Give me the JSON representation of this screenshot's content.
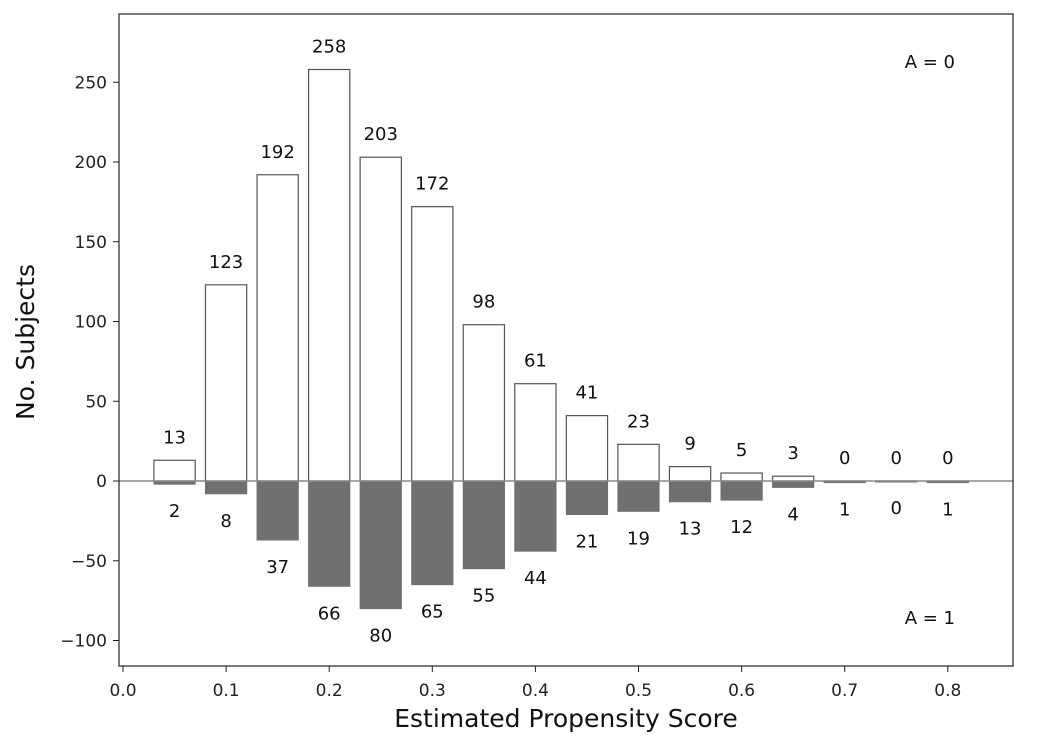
{
  "chart_data": {
    "type": "bar",
    "title": "",
    "xlabel": "Estimated Propensity Score",
    "ylabel": "No. Subjects",
    "xlim": [
      0.0,
      0.86
    ],
    "ylim": [
      -115,
      292
    ],
    "xticks": [
      "0.0",
      "0.1",
      "0.2",
      "0.3",
      "0.4",
      "0.5",
      "0.6",
      "0.7",
      "0.8"
    ],
    "yticks": [
      "−100",
      "−50",
      "0",
      "50",
      "100",
      "150",
      "200",
      "250"
    ],
    "bin_width": 0.05,
    "x": [
      0.05,
      0.1,
      0.15,
      0.2,
      0.25,
      0.3,
      0.35,
      0.4,
      0.45,
      0.5,
      0.55,
      0.6,
      0.65,
      0.7,
      0.75,
      0.8
    ],
    "series": [
      {
        "group_label": "A = 0",
        "values": [
          13,
          123,
          192,
          258,
          203,
          172,
          98,
          61,
          41,
          23,
          9,
          5,
          3,
          0,
          0,
          0
        ],
        "color": "#ffffff",
        "edge_color": "#555555",
        "direction": "up"
      },
      {
        "group_label": "A = 1",
        "values": [
          2,
          8,
          37,
          66,
          80,
          65,
          55,
          44,
          21,
          19,
          13,
          12,
          4,
          1,
          0,
          1
        ],
        "color": "#707070",
        "edge_color": "#707070",
        "direction": "down"
      }
    ],
    "grid": false,
    "legend": "none"
  }
}
